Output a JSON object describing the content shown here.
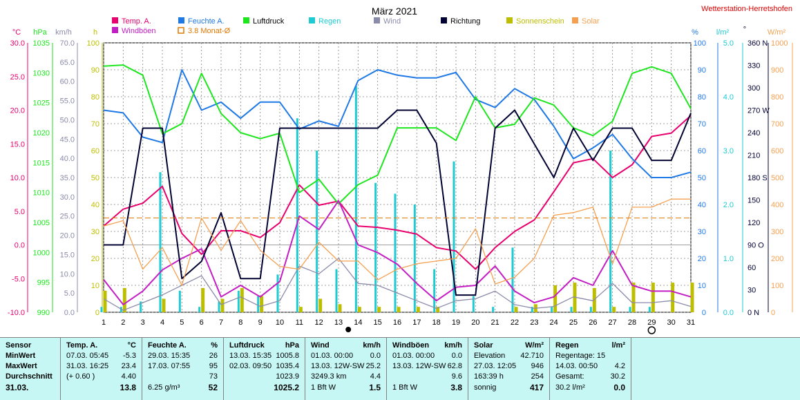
{
  "header": {
    "title": "März 2021",
    "station": "Wetterstation-Herretshofen"
  },
  "legend": [
    {
      "label": "Temp. A.",
      "color": "#e8006e"
    },
    {
      "label": "Feuchte A.",
      "color": "#1e78e6"
    },
    {
      "label": "Luftdruck",
      "color": "#1ee61e"
    },
    {
      "label": "Regen",
      "color": "#1ecbd2"
    },
    {
      "label": "Wind",
      "color": "#8a8aaa"
    },
    {
      "label": "Richtung",
      "color": "#000032"
    },
    {
      "label": "Sonnenschein",
      "color": "#bebe00"
    },
    {
      "label": "Solar",
      "color": "#f5a050"
    },
    {
      "label": "Windböen",
      "color": "#c31ec3"
    },
    {
      "label": "3.8 Monat-Ø",
      "color": "#e07800"
    }
  ],
  "axes_units": {
    "temp": "°C",
    "pressure": "hPa",
    "wind": "km/h",
    "sun": "h",
    "humidity": "%",
    "rain": "l/m²",
    "direction": "°",
    "solar": "W/m²"
  },
  "chart_data": {
    "type": "line",
    "x": [
      1,
      2,
      3,
      4,
      5,
      6,
      7,
      8,
      9,
      10,
      11,
      12,
      13,
      14,
      15,
      16,
      17,
      18,
      19,
      20,
      21,
      22,
      23,
      24,
      25,
      26,
      27,
      28,
      29,
      30,
      31
    ],
    "xlim": [
      1,
      31
    ],
    "axes": {
      "temp": {
        "ylim": [
          -10,
          30
        ],
        "ticks": [
          "30.0",
          "25.0",
          "20.0",
          "15.0",
          "10.0",
          "5.0",
          "0.0",
          "-5.0",
          "-10.0"
        ]
      },
      "pressure": {
        "ylim": [
          990,
          1035
        ],
        "ticks": [
          "1035",
          "1030",
          "1025",
          "1020",
          "1015",
          "1010",
          "1005",
          "1000",
          "995",
          "990"
        ]
      },
      "wind": {
        "ylim": [
          0,
          70
        ],
        "ticks": [
          "70.0",
          "65.0",
          "60.0",
          "55.0",
          "50.0",
          "45.0",
          "40.0",
          "35.0",
          "30.0",
          "25.0",
          "20.0",
          "15.0",
          "10.0",
          "5.0",
          "0.0"
        ]
      },
      "sun": {
        "ylim": [
          0,
          100
        ],
        "ticks": [
          "100",
          "90",
          "80",
          "70",
          "60",
          "50",
          "40",
          "30",
          "20",
          "10",
          "0"
        ]
      },
      "humidity": {
        "ylim": [
          0,
          100
        ],
        "ticks": [
          "100",
          "90",
          "80",
          "70",
          "60",
          "50",
          "40",
          "30",
          "20",
          "10",
          "0"
        ]
      },
      "rain": {
        "ylim": [
          0,
          5
        ],
        "ticks": [
          "5.0",
          "4.0",
          "3.0",
          "2.0",
          "1.0",
          "0.0"
        ]
      },
      "direction": {
        "ylim": [
          0,
          360
        ],
        "ticks": [
          "360 N",
          "330",
          "300",
          "270 W",
          "240",
          "210",
          "180 S",
          "150",
          "120",
          "90 O",
          "60",
          "30",
          "0 N"
        ]
      },
      "solar": {
        "ylim": [
          0,
          1000
        ],
        "ticks": [
          "1000",
          "900",
          "800",
          "700",
          "600",
          "500",
          "400",
          "300",
          "200",
          "100",
          "0"
        ]
      }
    },
    "series": [
      {
        "name": "Temp. A.",
        "axis": "temp",
        "values": [
          2.8,
          5.3,
          6.2,
          8.7,
          1.7,
          -1.4,
          2.1,
          2.1,
          1.1,
          3.3,
          8.9,
          5.9,
          6.5,
          2.8,
          2.6,
          2.2,
          1.6,
          -0.4,
          -0.9,
          -3.6,
          -0.4,
          2.0,
          3.7,
          7.9,
          12.2,
          12.8,
          10.0,
          11.9,
          16.1,
          16.6,
          19.2
        ]
      },
      {
        "name": "Feuchte A.",
        "axis": "humidity",
        "values": [
          75,
          74,
          65,
          63,
          90,
          75,
          78,
          72,
          78,
          78,
          68,
          71,
          69,
          86,
          90,
          88,
          87,
          87,
          89,
          79,
          76,
          83,
          79,
          69,
          57,
          61,
          66,
          57,
          50,
          50,
          52
        ]
      },
      {
        "name": "Luftdruck",
        "axis": "pressure",
        "values": [
          1031.1,
          1031.3,
          1029.6,
          1019.8,
          1021.5,
          1029.9,
          1023.2,
          1020.0,
          1019.0,
          1019.9,
          1010.0,
          1012.2,
          1008.1,
          1011.3,
          1012.9,
          1020.8,
          1020.8,
          1020.8,
          1018.7,
          1026.0,
          1020.8,
          1021.4,
          1025.8,
          1024.6,
          1020.8,
          1019.5,
          1021.9,
          1029.9,
          1031.0,
          1029.9,
          1024.0
        ]
      },
      {
        "name": "Wind",
        "axis": "wind",
        "values": [
          3.5,
          0.5,
          2.5,
          4.5,
          7.0,
          9.5,
          2.0,
          4.0,
          1.5,
          3.0,
          12.0,
          10.0,
          14.0,
          7.5,
          7.0,
          5.0,
          3.0,
          1.0,
          3.0,
          3.5,
          5.5,
          2.0,
          1.0,
          1.5,
          4.0,
          3.0,
          7.5,
          2.5,
          2.5,
          3.0,
          1.5
        ]
      },
      {
        "name": "Windböen",
        "axis": "wind",
        "values": [
          8.5,
          2.0,
          5.5,
          11.0,
          14.0,
          16.5,
          4.0,
          7.0,
          4.0,
          8.0,
          25.0,
          21.5,
          29.0,
          17.5,
          15.5,
          12.5,
          7.5,
          3.0,
          6.5,
          7.0,
          12.0,
          5.5,
          2.5,
          4.0,
          9.0,
          7.0,
          16.0,
          7.0,
          5.5,
          5.5,
          4.0
        ]
      },
      {
        "name": "Richtung",
        "axis": "direction",
        "values": [
          90,
          90,
          246,
          246,
          45,
          68,
          133,
          45,
          45,
          246,
          246,
          246,
          246,
          246,
          246,
          270,
          270,
          226,
          23,
          23,
          246,
          270,
          225,
          180,
          246,
          203,
          246,
          246,
          203,
          203,
          266
        ]
      },
      {
        "name": "Solar",
        "axis": "solar",
        "values": [
          320,
          340,
          160,
          240,
          100,
          350,
          230,
          340,
          230,
          170,
          160,
          260,
          190,
          190,
          120,
          160,
          180,
          190,
          200,
          310,
          105,
          130,
          200,
          360,
          370,
          390,
          180,
          390,
          390,
          420,
          420
        ]
      },
      {
        "name": "3.8 Monat-Ø",
        "axis": "sun",
        "values": [
          35,
          35,
          35,
          35,
          35,
          35,
          35,
          35,
          35,
          35,
          35,
          35,
          35,
          35,
          35,
          35,
          35,
          35,
          35,
          35,
          35,
          35,
          35,
          35,
          35,
          35,
          35,
          35,
          35,
          35,
          35
        ]
      }
    ],
    "bars": [
      {
        "name": "Regen",
        "axis": "rain",
        "values": [
          0.1,
          0.1,
          0.2,
          2.6,
          0.4,
          0.1,
          0.2,
          0.4,
          0.3,
          0.7,
          3.6,
          3.0,
          0.8,
          4.2,
          2.4,
          2.2,
          2.0,
          0.8,
          2.8,
          0.3,
          0.1,
          1.2,
          0.1,
          0.1,
          0.1,
          0.1,
          3.0,
          0.1,
          0.1,
          0.0,
          0.0
        ]
      },
      {
        "name": "Sonnenschein",
        "axis": "sun",
        "values": [
          8,
          9,
          0,
          5,
          0,
          9,
          5,
          9,
          6,
          0,
          2,
          5,
          3,
          2,
          2,
          2,
          2,
          2,
          0,
          0,
          0,
          2,
          3,
          10,
          11,
          9,
          2,
          11,
          11,
          11,
          11
        ]
      }
    ],
    "markers": [
      {
        "label": "●",
        "x": 13.5
      },
      {
        "label": "○",
        "x": 29
      }
    ]
  },
  "stats": {
    "row_labels": [
      "Sensor",
      "MinWert",
      "MaxWert",
      "Durchschnitt",
      "31.03."
    ],
    "temp": {
      "title": "Temp. A.",
      "unit": "°C",
      "rows": [
        [
          "07.03.  05:45",
          "-5.3"
        ],
        [
          "31.03.  16:25",
          "23.4"
        ],
        [
          "(+ 0.60 )",
          "4.40"
        ],
        [
          "",
          "13.8"
        ]
      ]
    },
    "humidity": {
      "title": "Feuchte A.",
      "unit": "%",
      "rows": [
        [
          "29.03.  15:35",
          "26"
        ],
        [
          "17.03.  07:55",
          "95"
        ],
        [
          "",
          "73"
        ],
        [
          "6.25 g/m³",
          "52"
        ]
      ]
    },
    "pressure": {
      "title": "Luftdruck",
      "unit": "hPa",
      "rows": [
        [
          "13.03.  15:35",
          "1005.8"
        ],
        [
          "02.03.  09:50",
          "1035.4"
        ],
        [
          "",
          "1023.9"
        ],
        [
          "",
          "1025.2"
        ]
      ]
    },
    "wind": {
      "title": "Wind",
      "unit": "km/h",
      "rows": [
        [
          "01.03.  00:00",
          "0.0"
        ],
        [
          "13.03.  12W-SW",
          "25.2"
        ],
        [
          "3249.3 km",
          "4.4"
        ],
        [
          "1 Bft W",
          "1.5"
        ]
      ]
    },
    "gusts": {
      "title": "Windböen",
      "unit": "km/h",
      "rows": [
        [
          "01.03.  00:00",
          "0.0"
        ],
        [
          "13.03.  12W-SW",
          "62.8"
        ],
        [
          "",
          "9.6"
        ],
        [
          "1 Bft W",
          "3.8"
        ]
      ]
    },
    "solar": {
      "title": "Solar",
      "unit": "W/m²",
      "rows": [
        [
          "Elevation",
          "42.710"
        ],
        [
          "27.03.  12:05",
          "946"
        ],
        [
          "163:39 h",
          "254"
        ],
        [
          "sonnig",
          "417"
        ]
      ]
    },
    "rain": {
      "title": "Regen",
      "unit": "l/m²",
      "rows": [
        [
          "Regentage: 15",
          ""
        ],
        [
          "14.03.  00:50",
          "4.2"
        ],
        [
          "Gesamt:",
          "30.2"
        ],
        [
          "30.2 l/m²",
          "0.0"
        ]
      ]
    }
  }
}
